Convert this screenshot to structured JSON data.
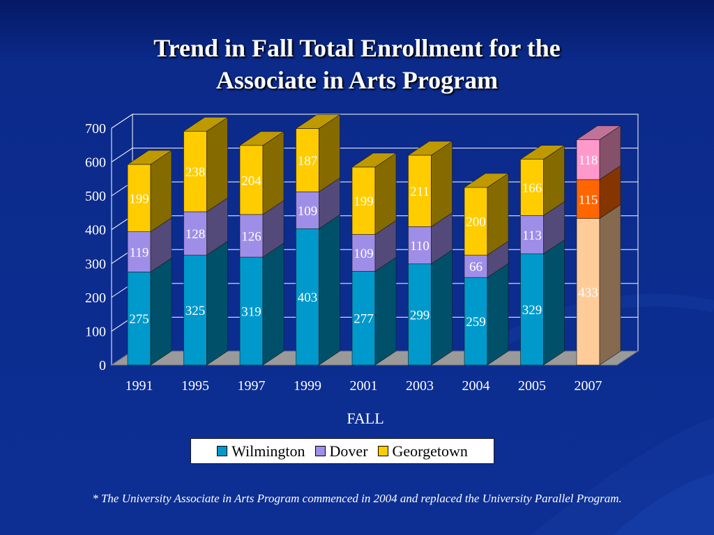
{
  "colors": {
    "background": "#0b2a8a",
    "wilmington": "#0099cc",
    "dover": "#9f8ee8",
    "georgetown": "#ffcc00",
    "wilmington_2007": "#ffcc99",
    "dover_2007": "#ff6600",
    "georgetown_2007": "#ff99cc"
  },
  "chart_data": {
    "type": "bar",
    "stacked": true,
    "three_d": true,
    "title": "Trend in Fall Total Enrollment for the Associate in Arts Program",
    "title_lines": [
      "Trend in Fall Total Enrollment for the",
      "Associate in Arts Program"
    ],
    "xlabel": "FALL",
    "ylabel": "",
    "ylim": [
      0,
      700
    ],
    "yticks": [
      0,
      100,
      200,
      300,
      400,
      500,
      600,
      700
    ],
    "grid": true,
    "legend_position": "bottom",
    "categories": [
      "1991",
      "1995",
      "1997",
      "1999",
      "2001",
      "2003",
      "2004",
      "2005",
      "2007"
    ],
    "series": [
      {
        "name": "Wilmington",
        "values": [
          275,
          325,
          319,
          403,
          277,
          299,
          259,
          329,
          433
        ]
      },
      {
        "name": "Dover",
        "values": [
          119,
          128,
          126,
          109,
          109,
          110,
          66,
          113,
          115
        ]
      },
      {
        "name": "Georgetown",
        "values": [
          199,
          238,
          204,
          187,
          199,
          211,
          200,
          166,
          118
        ]
      }
    ]
  },
  "footnote": "* The University Associate in Arts Program commenced in 2004 and replaced the University Parallel Program."
}
